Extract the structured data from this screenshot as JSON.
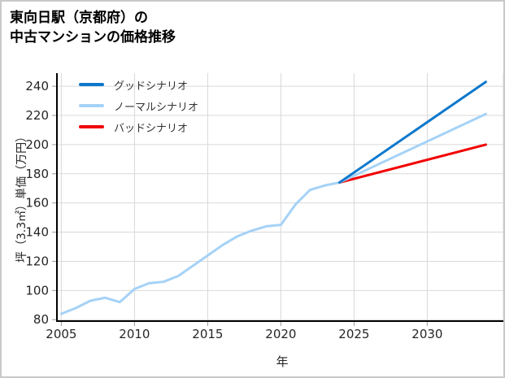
{
  "header": {
    "title_line1": "東向日駅（京都府）の",
    "title_line2": "中古マンションの価格推移"
  },
  "chart_data": {
    "type": "line",
    "title": "東向日駅（京都府）の中古マンションの価格推移",
    "xlabel": "年",
    "ylabel": "坪（3.3㎡）単価（万円）",
    "xlim": [
      2004.7,
      2035.2
    ],
    "ylim": [
      79,
      249
    ],
    "xticks": [
      2005,
      2010,
      2015,
      2020,
      2025,
      2030
    ],
    "yticks": [
      80,
      100,
      120,
      140,
      160,
      180,
      200,
      220,
      240
    ],
    "grid": true,
    "grid_color": "#d9d9d9",
    "tick_color": "#9a9a9a",
    "tick_label_color": "#262626",
    "spine_color": "#000000",
    "legend_position": "upper-left",
    "series": [
      {
        "name": "グッドシナリオ",
        "color": "#0d78cc",
        "x": [
          2024,
          2034
        ],
        "y": [
          174,
          243
        ]
      },
      {
        "name": "ノーマルシナリオ",
        "color": "#a5d2f7",
        "x": [
          2005,
          2006,
          2007,
          2008,
          2009,
          2010,
          2011,
          2012,
          2013,
          2014,
          2015,
          2016,
          2017,
          2018,
          2019,
          2020,
          2021,
          2022,
          2023,
          2024,
          2034
        ],
        "y": [
          84,
          88,
          93,
          95,
          92,
          101,
          105,
          106,
          110,
          117,
          124,
          131,
          137,
          141,
          144,
          145,
          159,
          169,
          172,
          174,
          221
        ]
      },
      {
        "name": "バッドシナリオ",
        "color": "#f20000",
        "x": [
          2024,
          2034
        ],
        "y": [
          174,
          200
        ]
      }
    ]
  }
}
